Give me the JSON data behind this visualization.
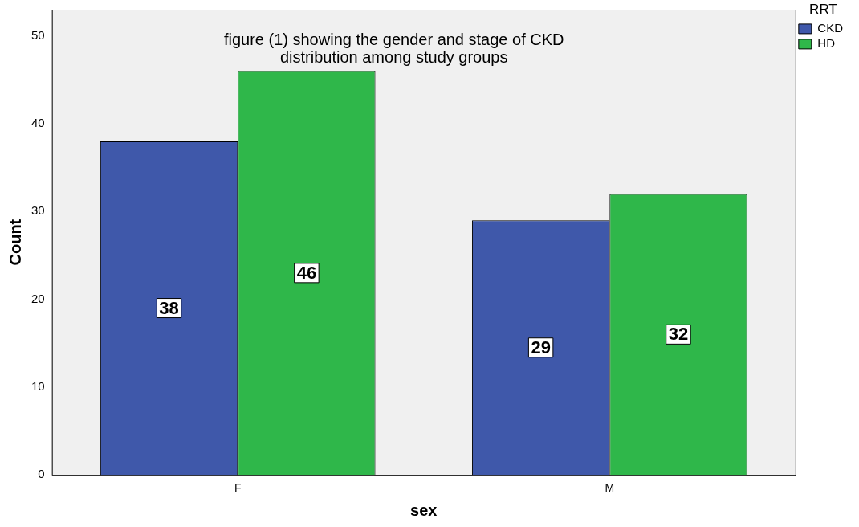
{
  "chart_data": {
    "type": "bar",
    "title": "figure (1) showing the gender and stage of CKD distribution among study groups",
    "xlabel": "sex",
    "ylabel": "Count",
    "legend_title": "RRT",
    "categories": [
      "F",
      "M"
    ],
    "series": [
      {
        "name": "CKD",
        "color": "#3f58aa",
        "values": [
          38,
          29
        ]
      },
      {
        "name": "HD",
        "color": "#2fb74a",
        "values": [
          46,
          32
        ]
      }
    ],
    "ylim": [
      0,
      53
    ],
    "yticks": [
      0,
      10,
      20,
      30,
      40,
      50
    ],
    "data_labels": true,
    "legend": "top right",
    "grid": false
  }
}
